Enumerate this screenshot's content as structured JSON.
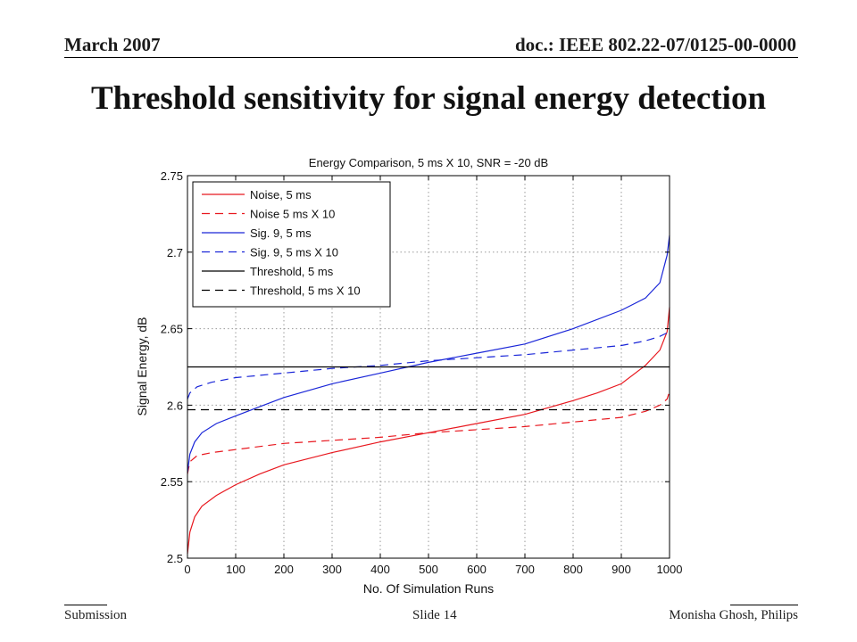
{
  "header": {
    "left": "March 2007",
    "right": "doc.: IEEE 802.22-07/0125-00-0000"
  },
  "slide_title": "Threshold sensitivity for signal energy detection",
  "footer": {
    "left": "Submission",
    "center": "Slide 14",
    "right": "Monisha Ghosh, Philips"
  },
  "colors": {
    "red": "#e8181f",
    "blue": "#1a26d8",
    "black": "#000000",
    "grid": "#9a9a9a"
  },
  "chart_data": {
    "type": "line",
    "title": "Energy Comparison, 5 ms X 10, SNR = -20 dB",
    "xlabel": "No. Of Simulation Runs",
    "ylabel": "Signal Energy, dB",
    "xlim": [
      0,
      1000
    ],
    "ylim": [
      2.5,
      2.75
    ],
    "xticks": [
      0,
      100,
      200,
      300,
      400,
      500,
      600,
      700,
      800,
      900,
      1000
    ],
    "yticks": [
      2.5,
      2.55,
      2.6,
      2.65,
      2.7,
      2.75
    ],
    "xtick_labels": [
      "0",
      "100",
      "200",
      "300",
      "400",
      "500",
      "600",
      "700",
      "800",
      "900",
      "1000"
    ],
    "ytick_labels": [
      "2.5",
      "2.55",
      "2.6",
      "2.65",
      "2.7",
      "2.75"
    ],
    "grid": true,
    "legend_position": "top-left",
    "series": [
      {
        "name": "Noise, 5 ms",
        "color": "red",
        "dash": "solid",
        "x": [
          0,
          5,
          15,
          30,
          60,
          100,
          150,
          200,
          300,
          400,
          500,
          600,
          700,
          800,
          850,
          900,
          950,
          980,
          995,
          1000
        ],
        "y": [
          2.503,
          2.517,
          2.527,
          2.534,
          2.541,
          2.548,
          2.555,
          2.561,
          2.569,
          2.576,
          2.582,
          2.588,
          2.594,
          2.603,
          2.608,
          2.614,
          2.626,
          2.636,
          2.648,
          2.664
        ]
      },
      {
        "name": "Noise 5 ms X 10",
        "color": "red",
        "dash": "dashed",
        "x": [
          0,
          5,
          20,
          50,
          100,
          200,
          300,
          400,
          500,
          600,
          700,
          800,
          900,
          950,
          980,
          995,
          1000
        ],
        "y": [
          2.555,
          2.563,
          2.567,
          2.569,
          2.571,
          2.575,
          2.577,
          2.579,
          2.582,
          2.584,
          2.586,
          2.589,
          2.592,
          2.596,
          2.6,
          2.604,
          2.609
        ]
      },
      {
        "name": "Sig. 9, 5 ms",
        "color": "blue",
        "dash": "solid",
        "x": [
          0,
          5,
          15,
          30,
          60,
          100,
          150,
          200,
          300,
          400,
          500,
          600,
          700,
          800,
          900,
          950,
          980,
          995,
          1000
        ],
        "y": [
          2.556,
          2.568,
          2.576,
          2.582,
          2.588,
          2.593,
          2.599,
          2.605,
          2.614,
          2.621,
          2.628,
          2.634,
          2.64,
          2.65,
          2.662,
          2.67,
          2.68,
          2.698,
          2.711
        ]
      },
      {
        "name": "Sig. 9, 5 ms X 10",
        "color": "blue",
        "dash": "dashed",
        "x": [
          0,
          5,
          20,
          50,
          100,
          200,
          300,
          400,
          500,
          600,
          700,
          800,
          900,
          950,
          980,
          1000
        ],
        "y": [
          2.604,
          2.608,
          2.612,
          2.615,
          2.618,
          2.621,
          2.624,
          2.626,
          2.629,
          2.631,
          2.633,
          2.636,
          2.639,
          2.642,
          2.645,
          2.648
        ]
      },
      {
        "name": "Threshold, 5 ms",
        "color": "black",
        "dash": "solid",
        "x": [
          0,
          1000
        ],
        "y": [
          2.625,
          2.625
        ]
      },
      {
        "name": "Threshold, 5 ms X 10",
        "color": "black",
        "dash": "dashed",
        "x": [
          0,
          1000
        ],
        "y": [
          2.597,
          2.597
        ]
      }
    ]
  }
}
